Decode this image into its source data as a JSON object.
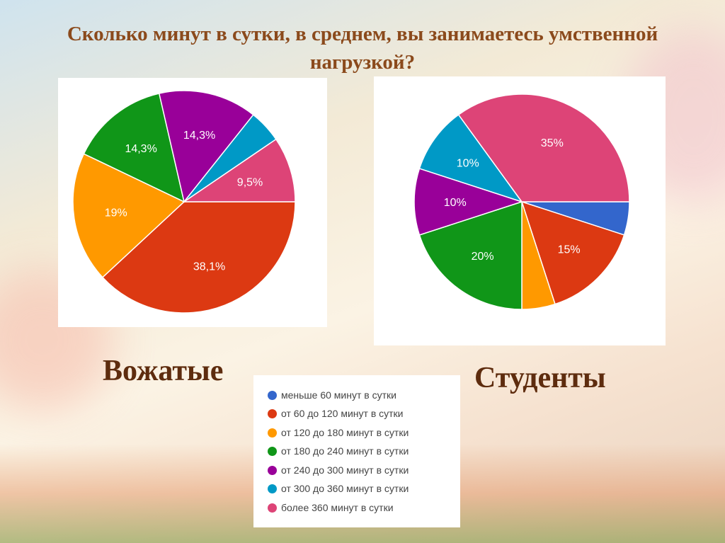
{
  "title": "Сколько минут в сутки, в среднем, вы занимаетесь умственной нагрузкой?",
  "legend": [
    {
      "label": "меньше 60 минут в сутки",
      "color": "#3366cc"
    },
    {
      "label": "от 60 до 120 минут в сутки",
      "color": "#dc3912"
    },
    {
      "label": "от 120 до 180 минут в сутки",
      "color": "#ff9900"
    },
    {
      "label": "от 180 до 240 минут в сутки",
      "color": "#109618"
    },
    {
      "label": "от 240 до 300 минут в сутки",
      "color": "#990099"
    },
    {
      "label": "от 300 до 360 минут в сутки",
      "color": "#0099c6"
    },
    {
      "label": "более 360 минут в сутки",
      "color": "#dd4477"
    }
  ],
  "chart_data": [
    {
      "type": "pie",
      "title": "Вожатые",
      "categories": [
        "меньше 60 минут в сутки",
        "от 60 до 120 минут в сутки",
        "от 120 до 180 минут в сутки",
        "от 180 до 240 минут в сутки",
        "от 240 до 300 минут в сутки",
        "от 300 до 360 минут в сутки",
        "более 360 минут в сутки"
      ],
      "values": [
        0,
        38.1,
        19,
        14.3,
        14.3,
        4.8,
        9.5
      ],
      "labels": [
        "",
        "38,1%",
        "19%",
        "14,3%",
        "14,3%",
        "",
        "9,5%"
      ]
    },
    {
      "type": "pie",
      "title": "Студенты",
      "categories": [
        "меньше 60 минут в сутки",
        "от 60 до 120 минут в сутки",
        "от 120 до 180 минут в сутки",
        "от 180 до 240 минут в сутки",
        "от 240 до 300 минут в сутки",
        "от 300 до 360 минут в сутки",
        "более 360 минут в сутки"
      ],
      "values": [
        5,
        15,
        5,
        20,
        10,
        10,
        35
      ],
      "labels": [
        "",
        "15%",
        "",
        "20%",
        "10%",
        "10%",
        "35%"
      ]
    }
  ]
}
